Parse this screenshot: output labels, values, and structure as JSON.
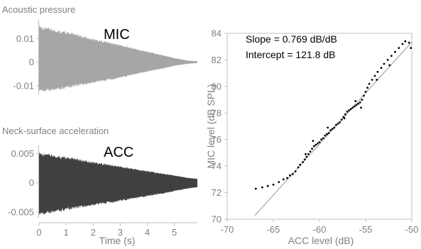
{
  "chart_data": [
    {
      "type": "area",
      "title": "Acoustic pressure",
      "label": "MIC",
      "ylim": [
        -0.014,
        0.018
      ],
      "yticks": [
        0.01,
        0,
        -0.01
      ],
      "ytick_labels": [
        "0.01",
        "0",
        "-0.01"
      ],
      "xlim": [
        0,
        5.85
      ],
      "series": [
        {
          "x": [
            0,
            0.1,
            0.5,
            1,
            1.5,
            2,
            2.5,
            3,
            3.5,
            4,
            4.5,
            5,
            5.5,
            5.85
          ],
          "upper": [
            0.0167,
            0.0155,
            0.0145,
            0.0132,
            0.0118,
            0.0103,
            0.009,
            0.0076,
            0.0061,
            0.0047,
            0.0033,
            0.0018,
            0.0007,
            0.0004
          ],
          "lower": [
            -0.013,
            -0.0128,
            -0.0123,
            -0.0114,
            -0.0103,
            -0.0091,
            -0.008,
            -0.0068,
            -0.0055,
            -0.0042,
            -0.003,
            -0.0016,
            -0.0007,
            -0.0004
          ]
        }
      ],
      "color": "#a6a6a6"
    },
    {
      "type": "area",
      "title": "Neck-surface acceleration",
      "label": "ACC",
      "ylim": [
        -0.006,
        0.0064
      ],
      "yticks": [
        0.005,
        0,
        -0.005
      ],
      "ytick_labels": [
        "0.005",
        "0",
        "-0.005"
      ],
      "xlim": [
        0,
        5.85
      ],
      "xticks": [
        0,
        1,
        2,
        3,
        4,
        5
      ],
      "xtick_labels": [
        "0",
        "1",
        "2",
        "3",
        "4",
        "5"
      ],
      "xlabel": "Time (s)",
      "series": [
        {
          "x": [
            0,
            0.1,
            0.5,
            1,
            1.5,
            2,
            2.5,
            3,
            3.5,
            4,
            4.5,
            5,
            5.5,
            5.85
          ],
          "upper": [
            0.0055,
            0.0052,
            0.0049,
            0.0045,
            0.0041,
            0.0037,
            0.0033,
            0.0029,
            0.0025,
            0.0021,
            0.0017,
            0.0013,
            0.0009,
            0.0007
          ],
          "lower": [
            -0.0058,
            -0.0056,
            -0.0052,
            -0.0048,
            -0.0044,
            -0.004,
            -0.0036,
            -0.0032,
            -0.0028,
            -0.0024,
            -0.002,
            -0.0015,
            -0.001,
            -0.0008
          ]
        }
      ],
      "color": "#404040"
    },
    {
      "type": "scatter",
      "xlabel": "ACC level (dB)",
      "ylabel": "MIC level (dB SPL)",
      "xlim": [
        -70,
        -50
      ],
      "ylim": [
        70,
        84
      ],
      "xticks": [
        -70,
        -65,
        -60,
        -55,
        -50
      ],
      "xtick_labels": [
        "-70",
        "-65",
        "-60",
        "-55",
        "-50"
      ],
      "yticks": [
        70,
        72,
        74,
        76,
        78,
        80,
        82,
        84
      ],
      "ytick_labels": [
        "70",
        "72",
        "74",
        "76",
        "78",
        "80",
        "82",
        "84"
      ],
      "annotations": [
        "Slope = 0.769 dB/dB",
        "Intercept = 121.8 dB"
      ],
      "slope": 0.769,
      "intercept": 121.8,
      "points": [
        [
          -66.9,
          72.3
        ],
        [
          -66.2,
          72.4
        ],
        [
          -65.6,
          72.5
        ],
        [
          -65.0,
          72.6
        ],
        [
          -64.4,
          72.8
        ],
        [
          -63.9,
          73.0
        ],
        [
          -63.5,
          73.1
        ],
        [
          -63.2,
          73.3
        ],
        [
          -62.9,
          73.4
        ],
        [
          -62.6,
          73.6
        ],
        [
          -62.3,
          73.9
        ],
        [
          -62.1,
          74.1
        ],
        [
          -61.8,
          74.3
        ],
        [
          -61.6,
          74.5
        ],
        [
          -61.4,
          74.7
        ],
        [
          -61.2,
          74.9
        ],
        [
          -61.0,
          75.1
        ],
        [
          -60.8,
          75.3
        ],
        [
          -60.6,
          75.5
        ],
        [
          -60.4,
          75.6
        ],
        [
          -60.2,
          75.7
        ],
        [
          -60.0,
          75.8
        ],
        [
          -59.8,
          76.0
        ],
        [
          -59.6,
          76.1
        ],
        [
          -59.4,
          76.3
        ],
        [
          -59.2,
          76.4
        ],
        [
          -59.0,
          76.5
        ],
        [
          -58.8,
          76.7
        ],
        [
          -58.6,
          76.8
        ],
        [
          -58.4,
          76.9
        ],
        [
          -58.2,
          77.1
        ],
        [
          -58.0,
          77.2
        ],
        [
          -57.8,
          77.3
        ],
        [
          -57.6,
          77.5
        ],
        [
          -57.4,
          77.7
        ],
        [
          -57.2,
          77.9
        ],
        [
          -57.0,
          78.1
        ],
        [
          -56.8,
          78.2
        ],
        [
          -56.6,
          78.3
        ],
        [
          -56.4,
          78.4
        ],
        [
          -56.2,
          78.5
        ],
        [
          -56.0,
          78.6
        ],
        [
          -55.8,
          78.7
        ],
        [
          -55.6,
          78.8
        ],
        [
          -55.4,
          79.0
        ],
        [
          -55.2,
          79.3
        ],
        [
          -55.0,
          79.6
        ],
        [
          -54.8,
          79.9
        ],
        [
          -54.6,
          80.2
        ],
        [
          -54.3,
          80.5
        ],
        [
          -54.0,
          80.8
        ],
        [
          -53.7,
          81.1
        ],
        [
          -53.3,
          81.4
        ],
        [
          -53.0,
          81.7
        ],
        [
          -52.6,
          82.0
        ],
        [
          -52.2,
          82.3
        ],
        [
          -51.8,
          82.6
        ],
        [
          -51.4,
          82.9
        ],
        [
          -51.0,
          83.2
        ],
        [
          -50.7,
          83.4
        ],
        [
          -50.3,
          83.3
        ],
        [
          -50.1,
          82.9
        ],
        [
          -61.5,
          74.9
        ],
        [
          -59.1,
          76.9
        ],
        [
          -57.3,
          77.6
        ],
        [
          -56.1,
          78.9
        ],
        [
          -55.5,
          78.4
        ],
        [
          -53.8,
          80.5
        ],
        [
          -52.4,
          81.6
        ],
        [
          -60.7,
          75.9
        ]
      ],
      "fit_line": {
        "x": [
          -67,
          -50
        ]
      }
    }
  ]
}
